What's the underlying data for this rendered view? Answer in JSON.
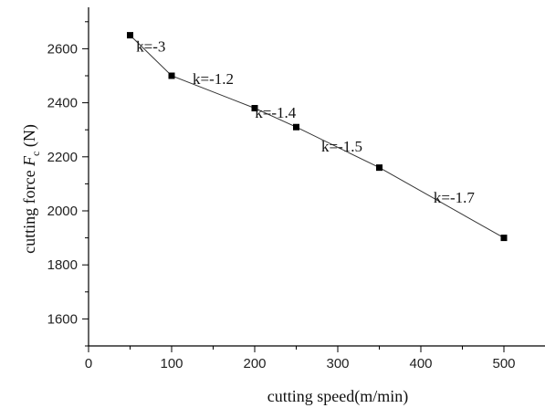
{
  "chart_data": {
    "type": "line",
    "xlabel": "cutting speed(m/min)",
    "ylabel_prefix": "cutting force ",
    "ylabel_symbol": "F",
    "ylabel_subscript": "c",
    "ylabel_suffix": " (N)",
    "xlim": [
      0,
      550
    ],
    "ylim": [
      1500,
      2700
    ],
    "x_ticks": [
      0,
      100,
      200,
      300,
      400,
      500
    ],
    "y_ticks": [
      1600,
      1800,
      2000,
      2200,
      2400,
      2600
    ],
    "grid": false,
    "legend": "none",
    "series": [
      {
        "x": [
          50,
          100,
          200,
          250,
          350,
          500
        ],
        "y": [
          2650,
          2500,
          2380,
          2310,
          2160,
          1900
        ]
      }
    ],
    "annotations": [
      {
        "text": "k=-3",
        "x": 75,
        "y": 2590
      },
      {
        "text": "k=-1.2",
        "x": 150,
        "y": 2470
      },
      {
        "text": "k=-1.4",
        "x": 225,
        "y": 2345
      },
      {
        "text": "k=-1.5",
        "x": 305,
        "y": 2220
      },
      {
        "text": "k=-1.7",
        "x": 440,
        "y": 2030
      }
    ]
  }
}
